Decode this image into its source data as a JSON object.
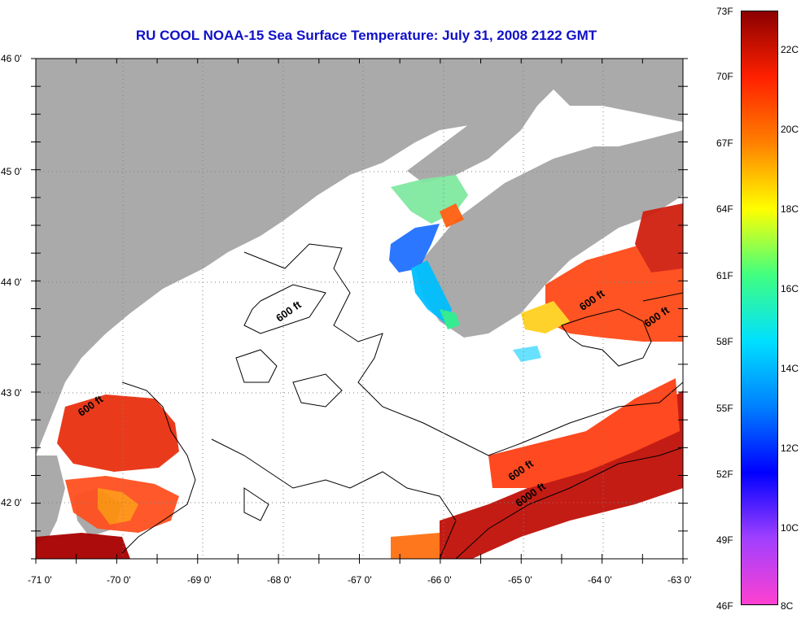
{
  "title": "RU COOL  NOAA-15  Sea Surface Temperature:  July 31, 2008 2122 GMT",
  "map": {
    "lat_labels": [
      "46 0'",
      "45 0'",
      "44 0'",
      "43 0'",
      "42 0'"
    ],
    "lon_labels": [
      "-71 0'",
      "-70 0'",
      "-69 0'",
      "-68 0'",
      "-67 0'",
      "-66 0'",
      "-65 0'",
      "-64 0'",
      "-63 0'"
    ],
    "lat_range": [
      41.5,
      46.0
    ],
    "lon_range": [
      -71.0,
      -63.0
    ],
    "contour_labels": [
      {
        "text": "600 ft",
        "lon": -67.85,
        "lat": 43.7
      },
      {
        "text": "600 ft",
        "lon": -70.3,
        "lat": 42.85
      },
      {
        "text": "600 ft",
        "lon": -64.1,
        "lat": 43.8
      },
      {
        "text": "600 ft",
        "lon": -63.3,
        "lat": 43.65
      },
      {
        "text": "600 ft",
        "lon": -64.98,
        "lat": 42.27
      },
      {
        "text": "6000 ft",
        "lon": -64.86,
        "lat": 42.05
      }
    ],
    "land_color": "#aaaaaa",
    "water_color": "#ffffff"
  },
  "colorbar": {
    "fahrenheit_labels": [
      "73F",
      "70F",
      "67F",
      "64F",
      "61F",
      "58F",
      "55F",
      "52F",
      "49F",
      "46F"
    ],
    "celsius_labels": [
      "22C",
      "20C",
      "18C",
      "16C",
      "14C",
      "12C",
      "10C",
      "8C"
    ],
    "gradient_colors": [
      "#8b0000",
      "#ff2000",
      "#ff8000",
      "#ffff00",
      "#40ff80",
      "#00e0ff",
      "#0080ff",
      "#0000ff",
      "#a040ff",
      "#ff40d0"
    ]
  }
}
